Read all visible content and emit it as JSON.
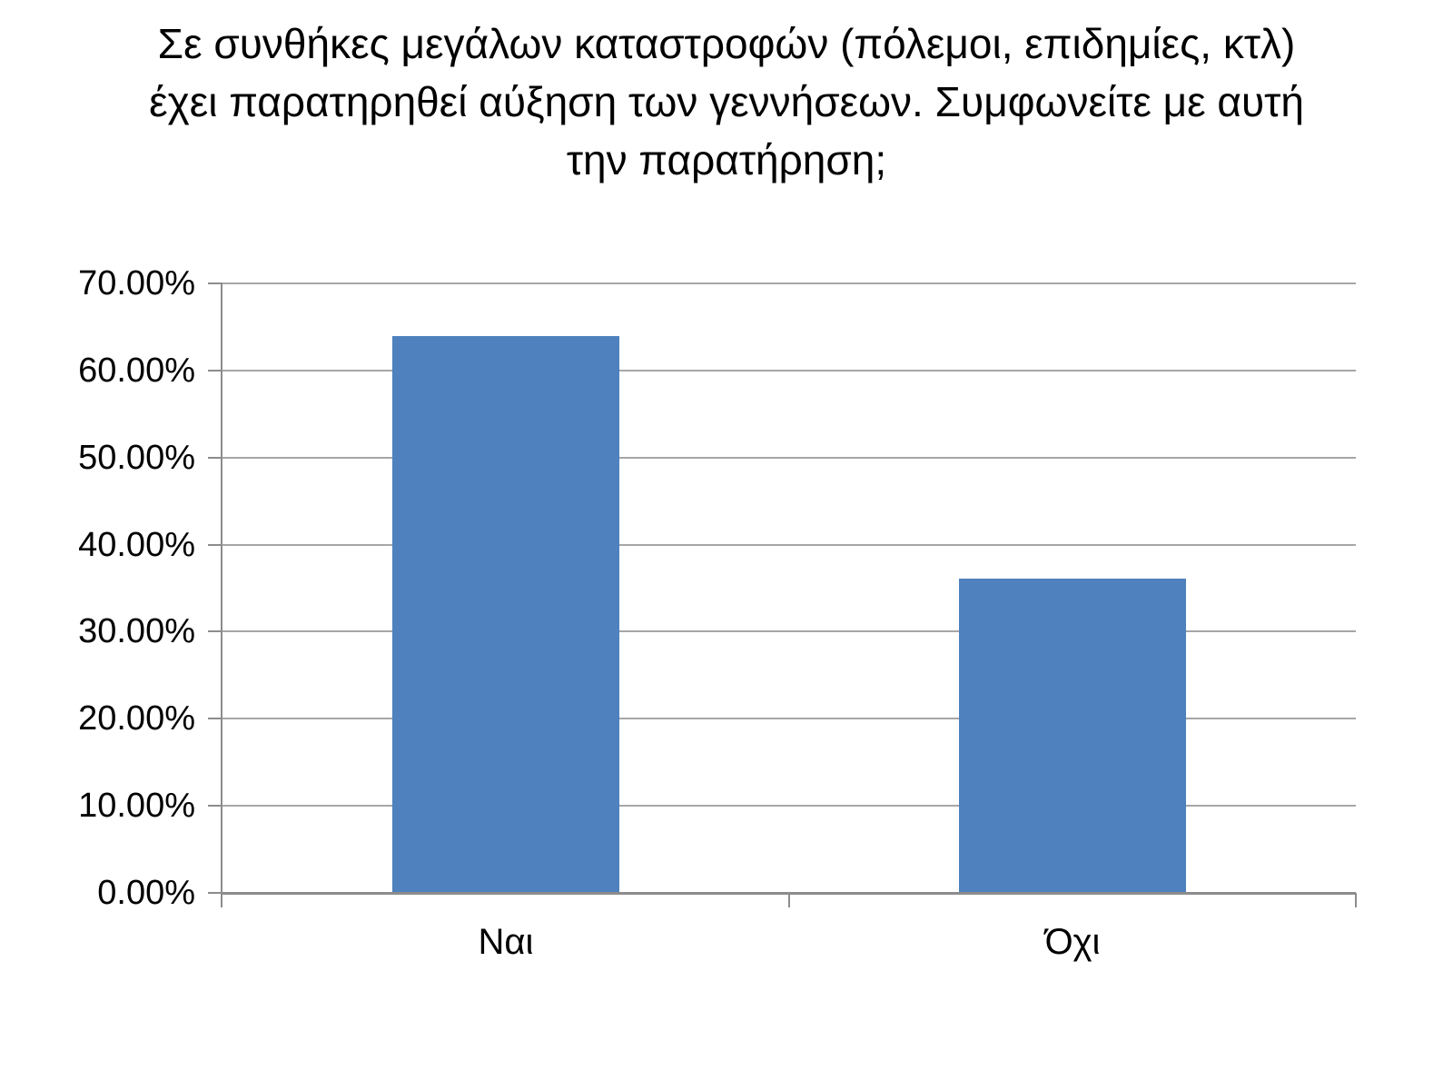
{
  "title": {
    "full": "Σε συνθήκες μεγάλων καταστροφών (πόλεμοι, επιδημίες, κτλ) έχει παρατηρηθεί αύξηση των γεννήσεων. Συμφωνείτε με αυτή την παρατήρηση;",
    "lines": [
      "Σε συνθήκες μεγάλων καταστροφών (πόλεμοι, επιδημίες, κτλ)",
      "έχει παρατηρηθεί αύξηση των γεννήσεων. Συμφωνείτε με αυτή",
      "την παρατήρηση;"
    ]
  },
  "chart_data": {
    "type": "bar",
    "title": "Σε συνθήκες μεγάλων καταστροφών (πόλεμοι, επιδημίες, κτλ) έχει παρατηρηθεί αύξηση των γεννήσεων. Συμφωνείτε με αυτή την παρατήρηση;",
    "categories": [
      "Ναι",
      "Όχι"
    ],
    "category_slugs": [
      "yes",
      "no"
    ],
    "values": [
      63.9,
      36.1
    ],
    "unit": "%",
    "xlabel": "",
    "ylabel": "",
    "ylim": [
      0,
      70
    ],
    "y_ticks": [
      {
        "value": 0,
        "label": "0.00%"
      },
      {
        "value": 10,
        "label": "10.00%"
      },
      {
        "value": 20,
        "label": "20.00%"
      },
      {
        "value": 30,
        "label": "30.00%"
      },
      {
        "value": 40,
        "label": "40.00%"
      },
      {
        "value": 50,
        "label": "50.00%"
      },
      {
        "value": 60,
        "label": "60.00%"
      },
      {
        "value": 70,
        "label": "70.00%"
      }
    ],
    "grid": "horizontal",
    "legend": "none",
    "colors": {
      "bar": "#4E81BD",
      "gridline": "#A6A6A6",
      "axis": "#8C8C8C",
      "text": "#000000",
      "background": "#FFFFFF"
    }
  }
}
